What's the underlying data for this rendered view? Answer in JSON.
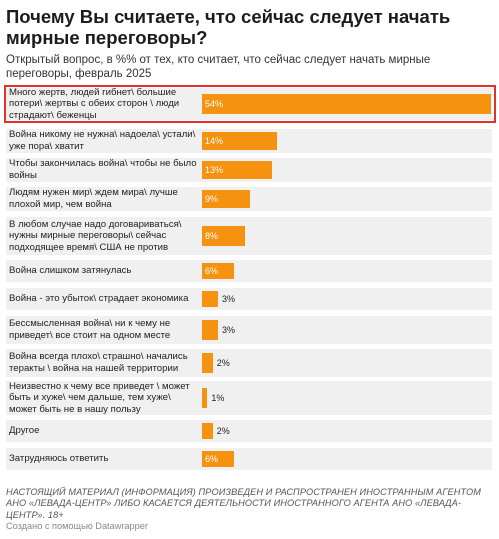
{
  "chart_data": {
    "type": "bar",
    "title": "Почему Вы считаете, что сейчас следует начать мирные переговоры?",
    "subtitle": "Открытый вопрос, в %% от тех, кто считает, что сейчас следует начать мирные переговоры, февраль 2025",
    "categories": [
      "Много жертв, людей гибнет\\ большие потери\\ жертвы с обеих сторон \\ люди страдают\\ беженцы",
      "Война никому не нужна\\ надоела\\ устали\\ уже пора\\ хватит",
      "Чтобы закончилась война\\ чтобы не было войны",
      "Людям нужен мир\\ ждем мира\\ лучше плохой мир, чем война",
      "В любом случае надо договариваться\\ нужны мирные переговоры\\ сейчас подходящее время\\ США не против",
      "Война слишком затянулась",
      "Война - это убыток\\ страдает экономика",
      "Бессмысленная война\\ ни к чему не приведет\\ все стоит на одном месте",
      "Война всегда плохо\\ страшно\\ начались теракты \\ война на нашей территории",
      "Неизвестно к чему все приведет \\ может быть и хуже\\ чем дальше, тем хуже\\ может быть не в нашу пользу",
      "Другое",
      "Затрудняюсь ответить"
    ],
    "values": [
      54,
      14,
      13,
      9,
      8,
      6,
      3,
      3,
      2,
      1,
      2,
      6
    ],
    "value_labels": [
      "54%",
      "14%",
      "13%",
      "9%",
      "8%",
      "6%",
      "3%",
      "3%",
      "2%",
      "1%",
      "2%",
      "6%"
    ],
    "xlim": [
      0,
      54
    ],
    "highlighted_category_index": 0,
    "bar_color": "#f5920f",
    "highlight_color": "#e2312b",
    "grid": false,
    "legend": "none"
  },
  "footnote": "НАСТОЯЩИЙ МАТЕРИАЛ (ИНФОРМАЦИЯ) ПРОИЗВЕДЕН И РАСПРОСТРАНЕН ИНОСТРАННЫМ АГЕНТОМ АНО «ЛЕВАДА-ЦЕНТР» ЛИБО КАСАЕТСЯ ДЕЯТЕЛЬНОСТИ ИНОСТРАННОГО АГЕНТА АНО «ЛЕВАДА-ЦЕНТР». 18+",
  "credit": "Создано с помощью Datawrapper"
}
